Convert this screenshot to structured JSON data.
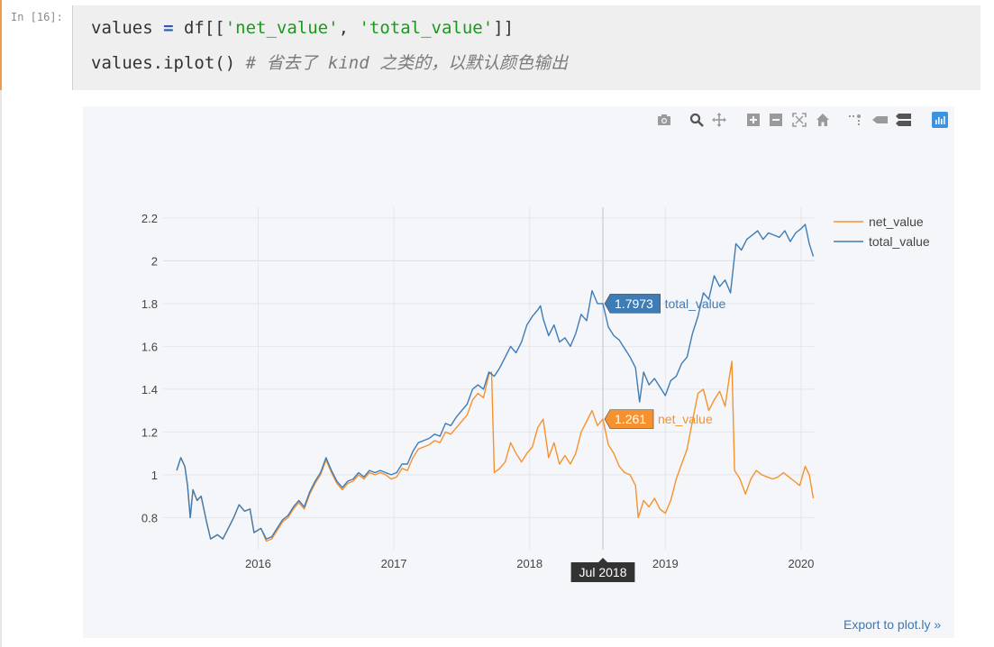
{
  "cell": {
    "prompt": "In [16]:",
    "code_line1": {
      "part1": "values ",
      "op": "=",
      "part2": " df[[",
      "str1": "'net_value'",
      "part3": ", ",
      "str2": "'total_value'",
      "part4": "]]"
    },
    "code_line2": {
      "code": "values.iplot() ",
      "comment": "# 省去了 kind 之类的，以默认颜色输出"
    }
  },
  "modebar": {
    "icons": [
      "camera-icon",
      "zoom-icon",
      "pan-icon",
      "zoom-in-icon",
      "zoom-out-icon",
      "autoscale-icon",
      "reset-axes-icon",
      "spike-lines-icon",
      "hover-closest-icon",
      "hover-compare-icon",
      "plotly-logo-icon"
    ]
  },
  "export_link": "Export to plot.ly »",
  "colors": {
    "net_value": "#f5922f",
    "total_value": "#3e7cb6",
    "plot_bg": "#f5f6f9"
  },
  "chart_data": {
    "type": "line",
    "title": "",
    "xlabel": "",
    "ylabel": "",
    "x_range": [
      2015.3,
      2020.1
    ],
    "ylim": [
      0.65,
      2.25
    ],
    "x_ticks": [
      {
        "value": 2016,
        "label": "2016"
      },
      {
        "value": 2017,
        "label": "2017"
      },
      {
        "value": 2018,
        "label": "2018"
      },
      {
        "value": 2019,
        "label": "2019"
      },
      {
        "value": 2020,
        "label": "2020"
      }
    ],
    "y_ticks": [
      {
        "value": 0.8,
        "label": "0.8"
      },
      {
        "value": 1.0,
        "label": "1"
      },
      {
        "value": 1.2,
        "label": "1.2"
      },
      {
        "value": 1.4,
        "label": "1.4"
      },
      {
        "value": 1.6,
        "label": "1.6"
      },
      {
        "value": 1.8,
        "label": "1.8"
      },
      {
        "value": 2.0,
        "label": "2"
      },
      {
        "value": 2.2,
        "label": "2.2"
      }
    ],
    "legend_position": "top-right",
    "hover": {
      "x": 2018.54,
      "x_label": "Jul 2018",
      "net_value_label": "1.261",
      "total_value_label": "1.7973"
    },
    "series": [
      {
        "name": "net_value",
        "color": "#f5922f",
        "points": [
          [
            2015.4,
            1.02
          ],
          [
            2015.43,
            1.08
          ],
          [
            2015.46,
            1.04
          ],
          [
            2015.48,
            0.95
          ],
          [
            2015.5,
            0.8
          ],
          [
            2015.52,
            0.93
          ],
          [
            2015.55,
            0.88
          ],
          [
            2015.58,
            0.9
          ],
          [
            2015.62,
            0.78
          ],
          [
            2015.65,
            0.7
          ],
          [
            2015.7,
            0.72
          ],
          [
            2015.74,
            0.7
          ],
          [
            2015.78,
            0.75
          ],
          [
            2015.82,
            0.8
          ],
          [
            2015.86,
            0.86
          ],
          [
            2015.9,
            0.83
          ],
          [
            2015.94,
            0.84
          ],
          [
            2015.97,
            0.73
          ],
          [
            2016.02,
            0.75
          ],
          [
            2016.06,
            0.69
          ],
          [
            2016.1,
            0.7
          ],
          [
            2016.14,
            0.74
          ],
          [
            2016.18,
            0.78
          ],
          [
            2016.22,
            0.8
          ],
          [
            2016.26,
            0.84
          ],
          [
            2016.3,
            0.87
          ],
          [
            2016.34,
            0.84
          ],
          [
            2016.38,
            0.91
          ],
          [
            2016.42,
            0.96
          ],
          [
            2016.46,
            1.0
          ],
          [
            2016.5,
            1.07
          ],
          [
            2016.54,
            1.01
          ],
          [
            2016.58,
            0.96
          ],
          [
            2016.62,
            0.93
          ],
          [
            2016.66,
            0.96
          ],
          [
            2016.7,
            0.97
          ],
          [
            2016.74,
            1.0
          ],
          [
            2016.78,
            0.98
          ],
          [
            2016.82,
            1.01
          ],
          [
            2016.86,
            1.0
          ],
          [
            2016.9,
            1.01
          ],
          [
            2016.94,
            1.0
          ],
          [
            2016.98,
            0.98
          ],
          [
            2017.02,
            0.99
          ],
          [
            2017.06,
            1.03
          ],
          [
            2017.1,
            1.02
          ],
          [
            2017.14,
            1.08
          ],
          [
            2017.18,
            1.12
          ],
          [
            2017.22,
            1.13
          ],
          [
            2017.26,
            1.14
          ],
          [
            2017.3,
            1.16
          ],
          [
            2017.34,
            1.15
          ],
          [
            2017.38,
            1.2
          ],
          [
            2017.42,
            1.19
          ],
          [
            2017.46,
            1.22
          ],
          [
            2017.5,
            1.25
          ],
          [
            2017.54,
            1.28
          ],
          [
            2017.58,
            1.35
          ],
          [
            2017.62,
            1.38
          ],
          [
            2017.66,
            1.36
          ],
          [
            2017.7,
            1.47
          ],
          [
            2017.72,
            1.48
          ],
          [
            2017.74,
            1.01
          ],
          [
            2017.78,
            1.03
          ],
          [
            2017.82,
            1.06
          ],
          [
            2017.86,
            1.15
          ],
          [
            2017.9,
            1.1
          ],
          [
            2017.94,
            1.06
          ],
          [
            2017.98,
            1.1
          ],
          [
            2018.02,
            1.13
          ],
          [
            2018.06,
            1.22
          ],
          [
            2018.1,
            1.26
          ],
          [
            2018.14,
            1.08
          ],
          [
            2018.18,
            1.15
          ],
          [
            2018.22,
            1.05
          ],
          [
            2018.26,
            1.09
          ],
          [
            2018.3,
            1.05
          ],
          [
            2018.34,
            1.1
          ],
          [
            2018.38,
            1.2
          ],
          [
            2018.42,
            1.25
          ],
          [
            2018.46,
            1.3
          ],
          [
            2018.5,
            1.23
          ],
          [
            2018.54,
            1.26
          ],
          [
            2018.58,
            1.14
          ],
          [
            2018.62,
            1.1
          ],
          [
            2018.66,
            1.04
          ],
          [
            2018.7,
            1.01
          ],
          [
            2018.74,
            1.0
          ],
          [
            2018.78,
            0.95
          ],
          [
            2018.8,
            0.8
          ],
          [
            2018.84,
            0.88
          ],
          [
            2018.88,
            0.85
          ],
          [
            2018.92,
            0.89
          ],
          [
            2018.96,
            0.84
          ],
          [
            2019.0,
            0.82
          ],
          [
            2019.04,
            0.88
          ],
          [
            2019.08,
            0.98
          ],
          [
            2019.12,
            1.05
          ],
          [
            2019.16,
            1.12
          ],
          [
            2019.2,
            1.25
          ],
          [
            2019.24,
            1.38
          ],
          [
            2019.28,
            1.4
          ],
          [
            2019.32,
            1.3
          ],
          [
            2019.36,
            1.35
          ],
          [
            2019.4,
            1.39
          ],
          [
            2019.44,
            1.32
          ],
          [
            2019.47,
            1.45
          ],
          [
            2019.49,
            1.53
          ],
          [
            2019.51,
            1.02
          ],
          [
            2019.55,
            0.98
          ],
          [
            2019.59,
            0.91
          ],
          [
            2019.63,
            0.98
          ],
          [
            2019.67,
            1.02
          ],
          [
            2019.71,
            1.0
          ],
          [
            2019.75,
            0.99
          ],
          [
            2019.79,
            0.98
          ],
          [
            2019.83,
            0.99
          ],
          [
            2019.87,
            1.01
          ],
          [
            2019.91,
            0.99
          ],
          [
            2019.95,
            0.97
          ],
          [
            2019.99,
            0.95
          ],
          [
            2020.03,
            1.04
          ],
          [
            2020.06,
            1.0
          ],
          [
            2020.09,
            0.89
          ]
        ]
      },
      {
        "name": "total_value",
        "color": "#3e7cb6",
        "points": [
          [
            2015.4,
            1.02
          ],
          [
            2015.43,
            1.08
          ],
          [
            2015.46,
            1.04
          ],
          [
            2015.48,
            0.95
          ],
          [
            2015.5,
            0.8
          ],
          [
            2015.52,
            0.93
          ],
          [
            2015.55,
            0.88
          ],
          [
            2015.58,
            0.9
          ],
          [
            2015.62,
            0.78
          ],
          [
            2015.65,
            0.7
          ],
          [
            2015.7,
            0.72
          ],
          [
            2015.74,
            0.7
          ],
          [
            2015.78,
            0.75
          ],
          [
            2015.82,
            0.8
          ],
          [
            2015.86,
            0.86
          ],
          [
            2015.9,
            0.83
          ],
          [
            2015.94,
            0.84
          ],
          [
            2015.97,
            0.73
          ],
          [
            2016.02,
            0.75
          ],
          [
            2016.06,
            0.7
          ],
          [
            2016.1,
            0.71
          ],
          [
            2016.14,
            0.75
          ],
          [
            2016.18,
            0.79
          ],
          [
            2016.22,
            0.81
          ],
          [
            2016.26,
            0.85
          ],
          [
            2016.3,
            0.88
          ],
          [
            2016.34,
            0.85
          ],
          [
            2016.38,
            0.92
          ],
          [
            2016.42,
            0.97
          ],
          [
            2016.46,
            1.01
          ],
          [
            2016.5,
            1.08
          ],
          [
            2016.54,
            1.02
          ],
          [
            2016.58,
            0.97
          ],
          [
            2016.62,
            0.94
          ],
          [
            2016.66,
            0.97
          ],
          [
            2016.7,
            0.98
          ],
          [
            2016.74,
            1.01
          ],
          [
            2016.78,
            0.99
          ],
          [
            2016.82,
            1.02
          ],
          [
            2016.86,
            1.01
          ],
          [
            2016.9,
            1.02
          ],
          [
            2016.94,
            1.01
          ],
          [
            2016.98,
            1.0
          ],
          [
            2017.02,
            1.01
          ],
          [
            2017.06,
            1.05
          ],
          [
            2017.1,
            1.05
          ],
          [
            2017.14,
            1.11
          ],
          [
            2017.18,
            1.15
          ],
          [
            2017.22,
            1.16
          ],
          [
            2017.26,
            1.17
          ],
          [
            2017.3,
            1.19
          ],
          [
            2017.34,
            1.18
          ],
          [
            2017.38,
            1.24
          ],
          [
            2017.42,
            1.23
          ],
          [
            2017.46,
            1.27
          ],
          [
            2017.5,
            1.3
          ],
          [
            2017.54,
            1.33
          ],
          [
            2017.58,
            1.4
          ],
          [
            2017.62,
            1.42
          ],
          [
            2017.66,
            1.4
          ],
          [
            2017.7,
            1.48
          ],
          [
            2017.74,
            1.46
          ],
          [
            2017.78,
            1.5
          ],
          [
            2017.82,
            1.55
          ],
          [
            2017.86,
            1.6
          ],
          [
            2017.9,
            1.57
          ],
          [
            2017.94,
            1.62
          ],
          [
            2017.98,
            1.7
          ],
          [
            2018.02,
            1.74
          ],
          [
            2018.06,
            1.77
          ],
          [
            2018.08,
            1.79
          ],
          [
            2018.1,
            1.73
          ],
          [
            2018.14,
            1.65
          ],
          [
            2018.18,
            1.7
          ],
          [
            2018.22,
            1.62
          ],
          [
            2018.26,
            1.64
          ],
          [
            2018.3,
            1.6
          ],
          [
            2018.34,
            1.66
          ],
          [
            2018.38,
            1.75
          ],
          [
            2018.42,
            1.72
          ],
          [
            2018.46,
            1.86
          ],
          [
            2018.5,
            1.8
          ],
          [
            2018.54,
            1.8
          ],
          [
            2018.58,
            1.69
          ],
          [
            2018.62,
            1.65
          ],
          [
            2018.66,
            1.63
          ],
          [
            2018.7,
            1.59
          ],
          [
            2018.74,
            1.55
          ],
          [
            2018.78,
            1.5
          ],
          [
            2018.81,
            1.34
          ],
          [
            2018.84,
            1.48
          ],
          [
            2018.88,
            1.42
          ],
          [
            2018.92,
            1.45
          ],
          [
            2018.96,
            1.41
          ],
          [
            2019.0,
            1.37
          ],
          [
            2019.04,
            1.44
          ],
          [
            2019.08,
            1.46
          ],
          [
            2019.12,
            1.52
          ],
          [
            2019.16,
            1.55
          ],
          [
            2019.2,
            1.66
          ],
          [
            2019.24,
            1.74
          ],
          [
            2019.28,
            1.85
          ],
          [
            2019.32,
            1.82
          ],
          [
            2019.36,
            1.93
          ],
          [
            2019.4,
            1.88
          ],
          [
            2019.44,
            1.91
          ],
          [
            2019.48,
            1.85
          ],
          [
            2019.52,
            2.08
          ],
          [
            2019.56,
            2.05
          ],
          [
            2019.6,
            2.1
          ],
          [
            2019.64,
            2.12
          ],
          [
            2019.68,
            2.14
          ],
          [
            2019.72,
            2.1
          ],
          [
            2019.76,
            2.13
          ],
          [
            2019.8,
            2.12
          ],
          [
            2019.84,
            2.11
          ],
          [
            2019.88,
            2.14
          ],
          [
            2019.92,
            2.09
          ],
          [
            2019.96,
            2.13
          ],
          [
            2020.0,
            2.15
          ],
          [
            2020.03,
            2.17
          ],
          [
            2020.06,
            2.08
          ],
          [
            2020.09,
            2.02
          ]
        ]
      }
    ]
  }
}
